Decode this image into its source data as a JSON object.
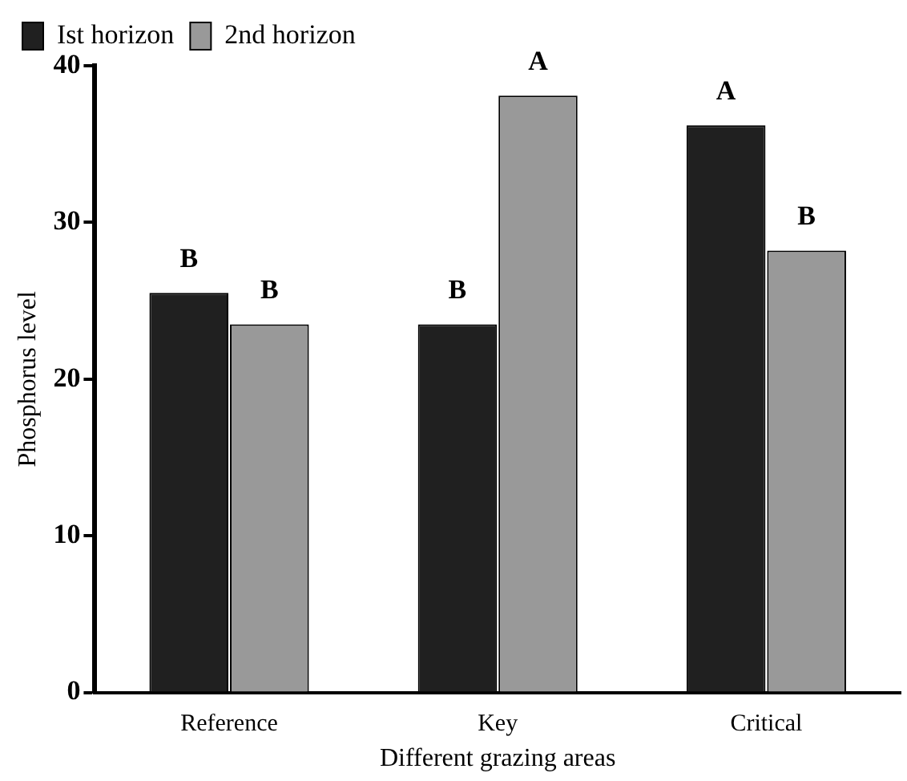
{
  "chart_data": {
    "type": "bar",
    "xlabel": "Different grazing areas",
    "ylabel": "Phosphorus level",
    "categories": [
      "Reference",
      "Key",
      "Critical"
    ],
    "series": [
      {
        "name": "Ist horizon",
        "color": "#202020",
        "values": [
          25.5,
          23.5,
          36.2
        ],
        "value_labels": [
          "B",
          "B",
          "A"
        ]
      },
      {
        "name": "2nd horizon",
        "color": "#999999",
        "values": [
          23.5,
          38.1,
          28.2
        ],
        "value_labels": [
          "B",
          "A",
          "B"
        ]
      }
    ],
    "ylim": [
      0,
      40
    ],
    "yticks": [
      0,
      10,
      20,
      30,
      40
    ],
    "grid": false,
    "legend": "top left"
  }
}
